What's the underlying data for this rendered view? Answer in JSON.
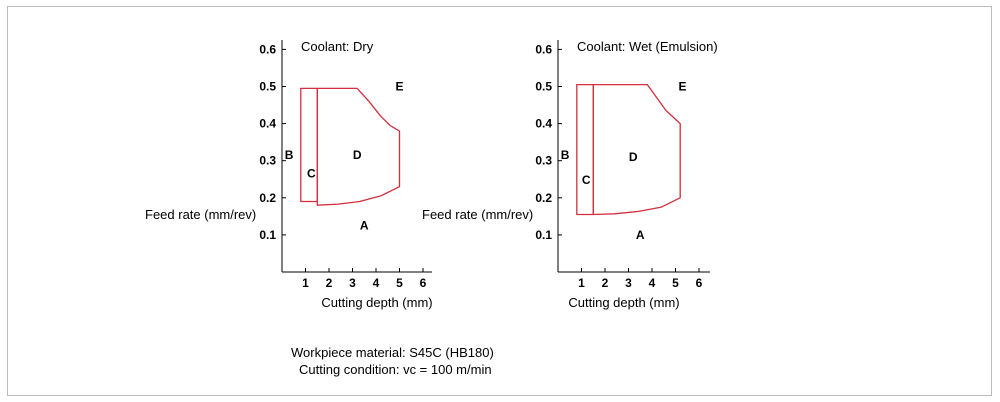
{
  "chart_data": [
    {
      "type": "line",
      "title": "Coolant: Dry",
      "xlabel": "Cutting depth (mm)",
      "ylabel": "Feed rate (mm/rev)",
      "xlim": [
        0,
        6
      ],
      "ylim": [
        0,
        0.6
      ],
      "xticks": [
        "1",
        "2",
        "3",
        "4",
        "5",
        "6"
      ],
      "yticks": [
        "0.1",
        "0.2",
        "0.3",
        "0.4",
        "0.5",
        "0.6"
      ],
      "line_color": "#d32f3f",
      "regions": [
        {
          "name": "B",
          "label_at": [
            0.3,
            0.315
          ],
          "outline": [
            [
              0.8,
              0.19
            ],
            [
              0.8,
              0.495
            ],
            [
              1.5,
              0.495
            ],
            [
              1.5,
              0.19
            ]
          ]
        },
        {
          "name": "C",
          "label_at": [
            1.25,
            0.265
          ],
          "outline": [
            [
              0.8,
              0.19
            ],
            [
              0.8,
              0.495
            ],
            [
              1.5,
              0.495
            ],
            [
              1.5,
              0.19
            ]
          ]
        },
        {
          "name": "D",
          "label_at": [
            3.2,
            0.315
          ],
          "outline": [
            [
              1.5,
              0.495
            ],
            [
              3.2,
              0.495
            ],
            [
              3.7,
              0.46
            ],
            [
              4.2,
              0.42
            ],
            [
              4.6,
              0.395
            ],
            [
              5.0,
              0.38
            ],
            [
              5.0,
              0.23
            ],
            [
              4.2,
              0.205
            ],
            [
              3.3,
              0.19
            ],
            [
              2.4,
              0.183
            ],
            [
              1.5,
              0.18
            ]
          ]
        },
        {
          "name": "E",
          "label_at": [
            5.0,
            0.5
          ],
          "outline": []
        },
        {
          "name": "A",
          "label_at": [
            3.5,
            0.125
          ],
          "outline": []
        }
      ]
    },
    {
      "type": "line",
      "title": "Coolant: Wet (Emulsion)",
      "xlabel": "Cutting depth (mm)",
      "ylabel": "Feed rate (mm/rev)",
      "xlim": [
        0,
        6
      ],
      "ylim": [
        0,
        0.6
      ],
      "xticks": [
        "1",
        "2",
        "3",
        "4",
        "5",
        "6"
      ],
      "yticks": [
        "0.1",
        "0.2",
        "0.3",
        "0.4",
        "0.5",
        "0.6"
      ],
      "line_color": "#d32f3f",
      "regions": [
        {
          "name": "B",
          "label_at": [
            0.3,
            0.315
          ],
          "outline": [
            [
              0.8,
              0.155
            ],
            [
              0.8,
              0.505
            ],
            [
              1.5,
              0.505
            ],
            [
              1.5,
              0.155
            ]
          ]
        },
        {
          "name": "C",
          "label_at": [
            1.2,
            0.248
          ],
          "outline": [
            [
              0.8,
              0.155
            ],
            [
              0.8,
              0.505
            ],
            [
              1.5,
              0.505
            ],
            [
              1.5,
              0.155
            ]
          ]
        },
        {
          "name": "D",
          "label_at": [
            3.2,
            0.31
          ],
          "outline": [
            [
              1.5,
              0.505
            ],
            [
              3.8,
              0.505
            ],
            [
              4.2,
              0.47
            ],
            [
              4.6,
              0.435
            ],
            [
              5.2,
              0.4
            ],
            [
              5.2,
              0.2
            ],
            [
              4.4,
              0.175
            ],
            [
              3.4,
              0.163
            ],
            [
              2.4,
              0.157
            ],
            [
              1.5,
              0.155
            ]
          ]
        },
        {
          "name": "E",
          "label_at": [
            5.3,
            0.5
          ],
          "outline": []
        },
        {
          "name": "A",
          "label_at": [
            3.5,
            0.1
          ],
          "outline": []
        }
      ]
    }
  ],
  "notes": {
    "workpiece": "Workpiece material: S45C (HB180)",
    "condition": "Cutting condition: vc = 100 m/min"
  }
}
